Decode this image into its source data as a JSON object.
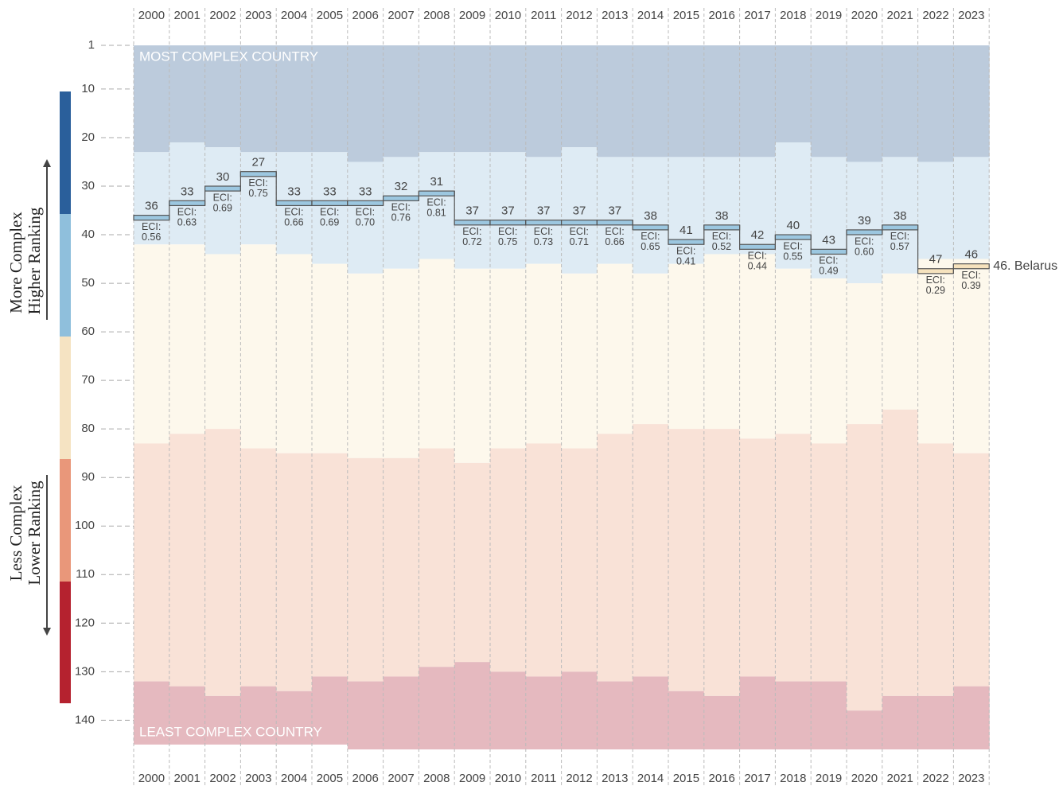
{
  "chart_data": {
    "type": "rank-step",
    "categories": [
      "2000",
      "2001",
      "2002",
      "2003",
      "2004",
      "2005",
      "2006",
      "2007",
      "2008",
      "2009",
      "2010",
      "2011",
      "2012",
      "2013",
      "2014",
      "2015",
      "2016",
      "2017",
      "2018",
      "2019",
      "2020",
      "2021",
      "2022",
      "2023"
    ],
    "rank": [
      36,
      33,
      30,
      27,
      33,
      33,
      33,
      32,
      31,
      37,
      37,
      37,
      37,
      37,
      38,
      41,
      38,
      42,
      40,
      43,
      39,
      38,
      47,
      46
    ],
    "eci_prefix": "ECI:",
    "eci": [
      0.56,
      0.63,
      0.69,
      0.75,
      0.66,
      0.69,
      0.7,
      0.76,
      0.81,
      0.72,
      0.75,
      0.73,
      0.71,
      0.66,
      0.65,
      0.41,
      0.52,
      0.44,
      0.55,
      0.49,
      0.6,
      0.57,
      0.29,
      0.39
    ],
    "eci_labels": [
      "0.56",
      "0.63",
      "0.69",
      "0.75",
      "0.66",
      "0.69",
      "0.70",
      "0.76",
      "0.81",
      "0.72",
      "0.75",
      "0.73",
      "0.71",
      "0.66",
      "0.65",
      "0.41",
      "0.52",
      "0.44",
      "0.55",
      "0.49",
      "0.60",
      "0.57",
      "0.29",
      "0.39"
    ],
    "bands": {
      "top_band_end": [
        23,
        21,
        22,
        23,
        23,
        23,
        25,
        24,
        23,
        23,
        23,
        24,
        22,
        24,
        24,
        24,
        24,
        24,
        21,
        24,
        25,
        24,
        25,
        24
      ],
      "upper_band_end": [
        42,
        42,
        44,
        42,
        44,
        46,
        48,
        47,
        45,
        47,
        47,
        46,
        48,
        46,
        48,
        46,
        44,
        44,
        47,
        49,
        50,
        48,
        45,
        45
      ],
      "middle_band_end": [
        83,
        81,
        80,
        84,
        85,
        85,
        86,
        86,
        84,
        87,
        84,
        83,
        84,
        81,
        79,
        80,
        80,
        82,
        81,
        83,
        79,
        76,
        83,
        85
      ],
      "lower_band_end": [
        132,
        133,
        135,
        133,
        134,
        131,
        132,
        131,
        129,
        128,
        130,
        131,
        130,
        132,
        131,
        134,
        135,
        131,
        132,
        132,
        138,
        135,
        135,
        133
      ],
      "total": [
        145,
        145,
        145,
        145,
        145,
        145,
        146,
        146,
        146,
        146,
        146,
        146,
        146,
        146,
        146,
        146,
        146,
        146,
        146,
        146,
        146,
        146,
        146,
        146
      ]
    },
    "band_colors": [
      "#bccbdc",
      "#deebf4",
      "#fdf8ec",
      "#f9e2d7",
      "#e5b9bf"
    ],
    "marker_colors": [
      "#6f9fc4",
      "#9cc7e0",
      "#f6e2bd",
      "#f2c4ac",
      "#d88d96"
    ],
    "ylim": [
      1,
      146
    ],
    "yticks": [
      1,
      10,
      20,
      30,
      40,
      50,
      60,
      70,
      80,
      90,
      100,
      110,
      120,
      130,
      140
    ],
    "top_label": "MOST COMPLEX COUNTRY",
    "bottom_label": "LEAST COMPLEX COUNTRY",
    "end_label": "46. Belarus",
    "legend_upper": [
      "More Complex",
      "Higher Ranking"
    ],
    "legend_lower": [
      "Less Complex",
      "Lower Ranking"
    ]
  }
}
